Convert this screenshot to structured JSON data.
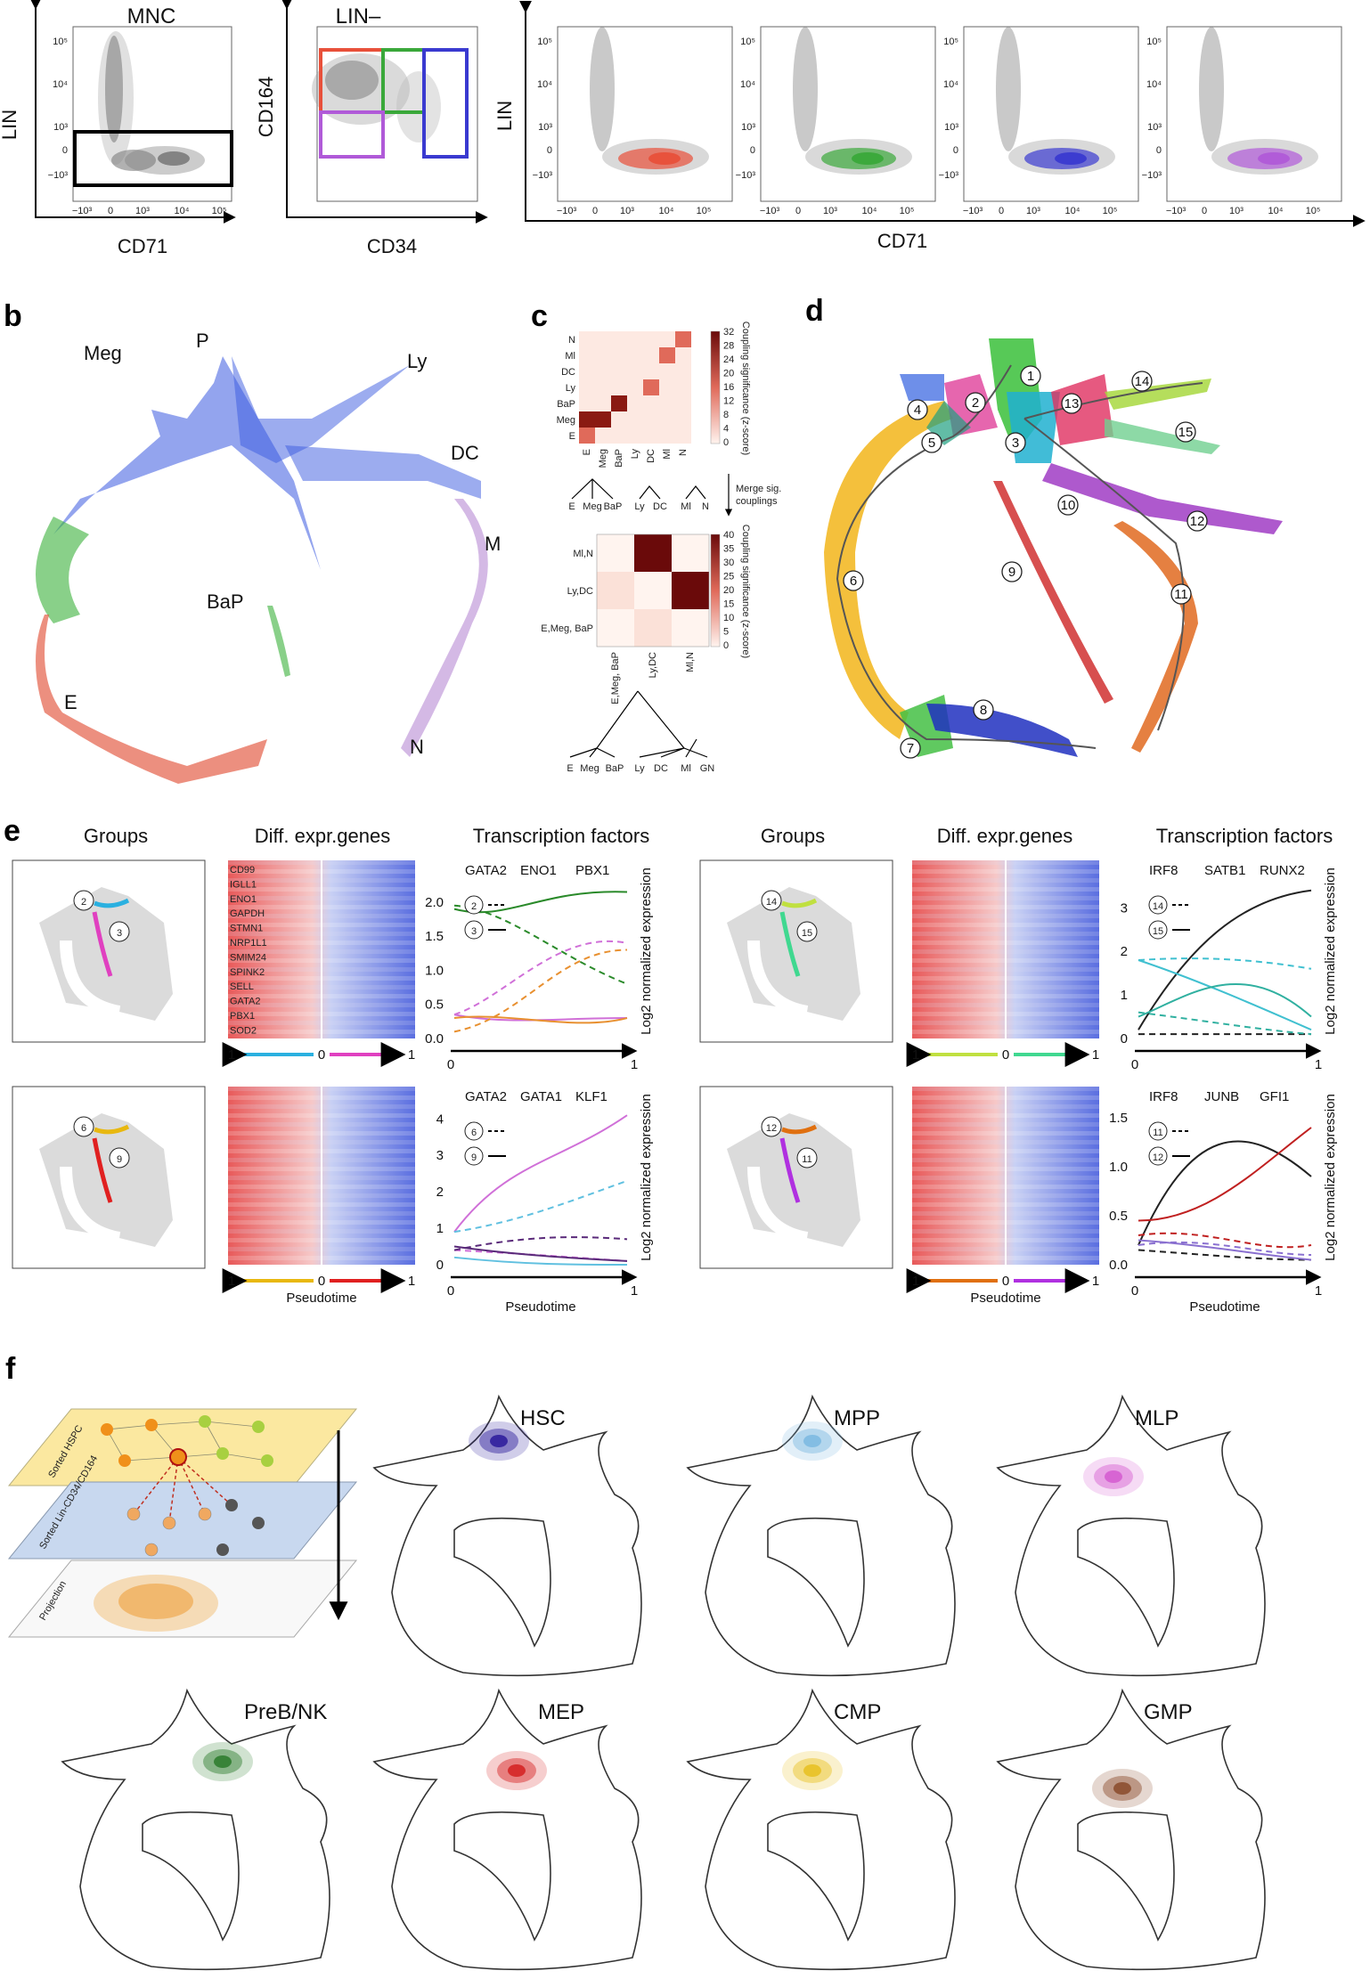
{
  "panel_a": {
    "plot1_title": "MNC",
    "plot1_ylabel": "LIN",
    "plot1_xlabel": "CD71",
    "plot2_title": "LIN–",
    "plot2_ylabel": "CD164",
    "plot2_xlabel": "CD34",
    "right_ylabel": "LIN",
    "right_xlabel": "CD71",
    "ticks_y": [
      "10⁵",
      "10⁴",
      "10³",
      "0",
      "−10³"
    ],
    "ticks_x": [
      "−10³",
      "0",
      "10³",
      "10⁴",
      "10⁵"
    ],
    "gate_colors": [
      "#e8503a",
      "#3aa83a",
      "#3a3ad0",
      "#b05ad8"
    ]
  },
  "panel_labels": [
    "b",
    "c",
    "d",
    "e",
    "f"
  ],
  "panel_b": {
    "labels": [
      "Meg",
      "P",
      "Ly",
      "DC",
      "M",
      "BaP",
      "E",
      "N"
    ]
  },
  "panel_c": {
    "top_rows": [
      "N",
      "Ml",
      "DC",
      "Ly",
      "BaP",
      "Meg",
      "E"
    ],
    "top_cols": [
      "E",
      "Meg",
      "BaP",
      "Ly",
      "DC",
      "Ml",
      "N"
    ],
    "top_scale": [
      "32",
      "28",
      "24",
      "20",
      "16",
      "12",
      "8",
      "4",
      "0"
    ],
    "scale_title": "Coupling significance (z-score)",
    "merge_text": [
      "Merge sig.",
      "couplings"
    ],
    "tree1_leaves": [
      "E",
      "Meg",
      "BaP",
      "Ly",
      "DC",
      "Ml",
      "N"
    ],
    "bottom_rows": [
      "Ml,N",
      "Ly,DC",
      "E,Meg, BaP"
    ],
    "bottom_cols": [
      "E,Meg, BaP",
      "Ly,DC",
      "Ml,N"
    ],
    "bottom_scale": [
      "40",
      "35",
      "30",
      "25",
      "20",
      "15",
      "10",
      "5",
      "0"
    ],
    "tree2_leaves": [
      "E",
      "Meg",
      "BaP",
      "Ly",
      "DC",
      "Ml",
      "GN"
    ]
  },
  "panel_d": {
    "clusters": [
      "1",
      "2",
      "3",
      "4",
      "5",
      "6",
      "7",
      "8",
      "9",
      "10",
      "11",
      "12",
      "13",
      "14",
      "15"
    ]
  },
  "panel_e": {
    "col_titles": [
      "Groups",
      "Diff. expr.genes",
      "Transcription factors",
      "Groups",
      "Diff. expr.genes",
      "Transcription factors"
    ],
    "gene_list": [
      "CD99",
      "IGLL1",
      "ENO1",
      "GAPDH",
      "STMN1",
      "NRP1L1",
      "SMIM24",
      "SPINK2",
      "SELL",
      "GATA2",
      "PBX1",
      "SOD2"
    ],
    "ylabel": "Log2 normalized expression",
    "xlabel": "Pseudotime",
    "tf1": {
      "genes": [
        "GATA2",
        "ENO1",
        "PBX1"
      ],
      "dashed": "2",
      "solid": "3",
      "yticks": [
        "2.0",
        "1.5",
        "1.0",
        "0.5",
        "0.0"
      ]
    },
    "tf2": {
      "genes": [
        "IRF8",
        "SATB1",
        "RUNX2"
      ],
      "dashed": "14",
      "solid": "15",
      "yticks": [
        "3",
        "2",
        "1",
        "0"
      ]
    },
    "tf3": {
      "genes": [
        "GATA2",
        "GATA1",
        "KLF1"
      ],
      "dashed": "6",
      "solid": "9",
      "yticks": [
        "4",
        "3",
        "2",
        "1",
        "0"
      ]
    },
    "tf4": {
      "genes": [
        "IRF8",
        "JUNB",
        "GFI1"
      ],
      "dashed": "11",
      "solid": "12",
      "yticks": [
        "1.5",
        "1.0",
        "0.5",
        "0.0"
      ]
    },
    "axis_ticks": [
      "0",
      "1"
    ],
    "heat_ticks": [
      "1",
      "0",
      "1"
    ],
    "group_markers": [
      [
        "2",
        "3"
      ],
      [
        "14",
        "15"
      ],
      [
        "6",
        "9"
      ],
      [
        "12",
        "11"
      ]
    ]
  },
  "panel_f": {
    "layer_labels": [
      "Sorted HSPC",
      "Sorted Lin-CD34/CD164",
      "Projection"
    ],
    "populations": [
      {
        "name": "HSC",
        "color": "#2a1a9a"
      },
      {
        "name": "MPP",
        "color": "#7ab8e0"
      },
      {
        "name": "MLP",
        "color": "#d45ad0"
      },
      {
        "name": "PreB/NK",
        "color": "#2a7a2a"
      },
      {
        "name": "MEP",
        "color": "#d42020"
      },
      {
        "name": "CMP",
        "color": "#e8c020"
      },
      {
        "name": "GMP",
        "color": "#8a4a2a"
      }
    ]
  }
}
